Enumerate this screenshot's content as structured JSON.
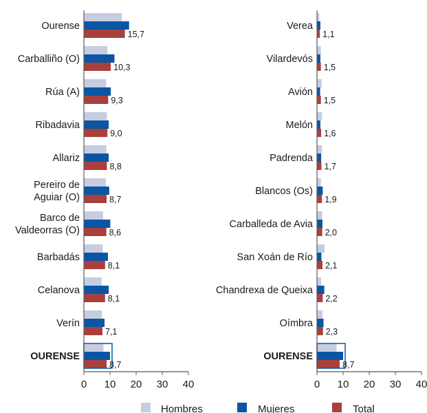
{
  "chart_data": [
    {
      "type": "bar",
      "orientation": "horizontal",
      "categories": [
        "Ourense",
        "Carballiño (O)",
        "Rúa (A)",
        "Ribadavia",
        "Allariz",
        "Pereiro de Aguiar (O)",
        "Barco de Valdeorras (O)",
        "Barbadás",
        "Celanova",
        "Verín",
        "OURENSE"
      ],
      "category_lines": [
        [
          "Ourense"
        ],
        [
          "Carballiño (O)"
        ],
        [
          "Rúa (A)"
        ],
        [
          "Ribadavia"
        ],
        [
          "Allariz"
        ],
        [
          "Pereiro de",
          "Aguiar (O)"
        ],
        [
          "Barco de",
          "Valdeorras (O)"
        ],
        [
          "Barbadás"
        ],
        [
          "Celanova"
        ],
        [
          "Verín"
        ],
        [
          "OURENSE"
        ]
      ],
      "total_labels": [
        "15,7",
        "10,3",
        "9,3",
        "9,0",
        "8,8",
        "8,7",
        "8,6",
        "8,1",
        "8,1",
        "7,1",
        "8,7"
      ],
      "series": [
        {
          "name": "Hombres",
          "values": [
            14.5,
            9.0,
            8.5,
            8.8,
            8.6,
            8.4,
            7.3,
            7.2,
            6.8,
            6.9,
            7.5
          ]
        },
        {
          "name": "Mujeres",
          "values": [
            17.3,
            11.7,
            10.3,
            9.5,
            9.5,
            9.7,
            10.1,
            9.2,
            9.5,
            7.9,
            10.0
          ]
        },
        {
          "name": "Total",
          "values": [
            15.7,
            10.3,
            9.3,
            9.0,
            8.8,
            8.7,
            8.6,
            8.1,
            8.1,
            7.1,
            8.7
          ]
        }
      ],
      "xlim": [
        0,
        40
      ],
      "xticks": [
        "0",
        "10",
        "20",
        "30",
        "40"
      ],
      "grid": false,
      "highlight_last_category": true
    },
    {
      "type": "bar",
      "orientation": "horizontal",
      "categories": [
        "Verea",
        "Vilardevós",
        "Avión",
        "Melón",
        "Padrenda",
        "Blancos (Os)",
        "Carballeda de Avia",
        "San Xoán de Río",
        "Chandrexa de Queixa",
        "Oímbra",
        "OURENSE"
      ],
      "category_lines": [
        [
          "Verea"
        ],
        [
          "Vilardevós"
        ],
        [
          "Avión"
        ],
        [
          "Melón"
        ],
        [
          "Padrenda"
        ],
        [
          "Blancos (Os)"
        ],
        [
          "Carballeda de Avia"
        ],
        [
          "San Xoán de Río"
        ],
        [
          "Chandrexa de Queixa"
        ],
        [
          "Oímbra"
        ],
        [
          "OURENSE"
        ]
      ],
      "total_labels": [
        "1,1",
        "1,5",
        "1,5",
        "1,6",
        "1,7",
        "1,9",
        "2,0",
        "2,1",
        "2,2",
        "2,3",
        "8,7"
      ],
      "series": [
        {
          "name": "Hombres",
          "values": [
            0.9,
            1.5,
            1.8,
            1.9,
            1.9,
            1.5,
            2.0,
            2.9,
            1.6,
            2.1,
            7.5
          ]
        },
        {
          "name": "Mujeres",
          "values": [
            1.3,
            1.3,
            1.2,
            1.3,
            1.6,
            2.2,
            2.1,
            1.7,
            2.8,
            2.5,
            10.0
          ]
        },
        {
          "name": "Total",
          "values": [
            1.1,
            1.5,
            1.5,
            1.6,
            1.7,
            1.9,
            2.0,
            2.1,
            2.2,
            2.3,
            8.7
          ]
        }
      ],
      "xlim": [
        0,
        40
      ],
      "xticks": [
        "0",
        "10",
        "20",
        "30",
        "40"
      ],
      "grid": false,
      "highlight_last_category": true
    }
  ],
  "legend": {
    "placement": "bottom",
    "items": [
      {
        "label": "Hombres",
        "color": "#c7cde0"
      },
      {
        "label": "Mujeres",
        "color": "#0b56a4"
      },
      {
        "label": "Total",
        "color": "#a8403d"
      }
    ]
  },
  "colors": {
    "hombres": "#c7cde0",
    "mujeres": "#0b56a4",
    "total": "#a8403d",
    "axis": "#5a5a5a",
    "highlight_border": "#0b56a4"
  }
}
